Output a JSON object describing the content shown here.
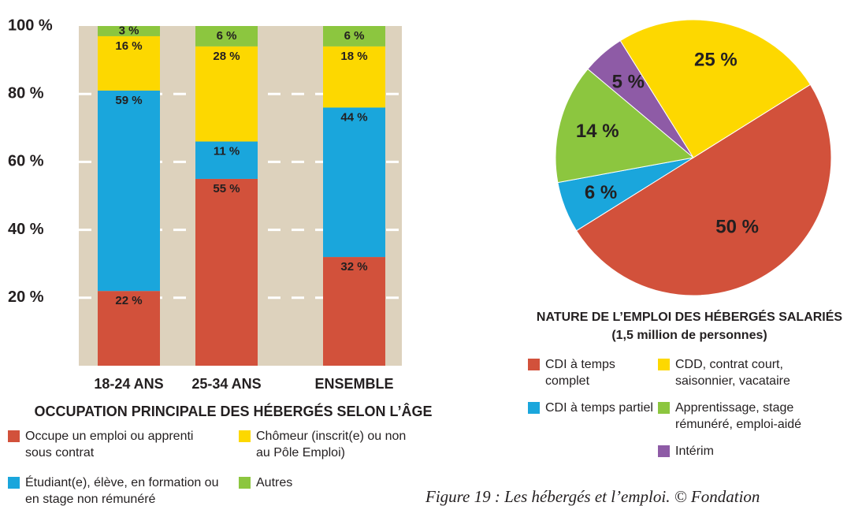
{
  "chart_data": [
    {
      "type": "stacked_bar",
      "title": "OCCUPATION PRINCIPALE DES HÉBERGÉS SELON L’ÂGE",
      "categories": [
        "18-24 ANS",
        "25-34 ANS",
        "ENSEMBLE"
      ],
      "series": [
        {
          "name": "Occupe un emploi ou apprenti sous contrat",
          "color": "#d2513b",
          "values": [
            22,
            55,
            32
          ],
          "value_labels": [
            "22 %",
            "55 %",
            "32 %"
          ]
        },
        {
          "name": "Étudiant(e), élève, en formation ou en stage non rémunéré",
          "color": "#1aa6dc",
          "values": [
            59,
            11,
            44
          ],
          "value_labels": [
            "59 %",
            "11 %",
            "44 %"
          ]
        },
        {
          "name": "Chômeur (inscrit(e) ou non au Pôle Emploi)",
          "color": "#fdd800",
          "values": [
            16,
            28,
            18
          ],
          "value_labels": [
            "16 %",
            "28 %",
            "18 %"
          ]
        },
        {
          "name": "Autres",
          "color": "#8cc63f",
          "values": [
            3,
            6,
            6
          ],
          "value_labels": [
            "3 %",
            "6 %",
            "6 %"
          ]
        }
      ],
      "ylim": [
        0,
        100
      ],
      "yticks": [
        {
          "value": 20,
          "label": "20 %"
        },
        {
          "value": 40,
          "label": "40 %"
        },
        {
          "value": 60,
          "label": "60 %"
        },
        {
          "value": 80,
          "label": "80 %"
        },
        {
          "value": 100,
          "label": "100 %"
        }
      ],
      "grid": true
    },
    {
      "type": "pie",
      "title": "NATURE DE L’EMPLOI DES HÉBERGÉS SALARIÉS",
      "subtitle": "(1,5 million de personnes)",
      "categories": [
        "CDI à temps complet",
        "CDI à temps partiel",
        "Apprentissage, stage rémunéré, emploi-aidé",
        "Intérim",
        "CDD, contrat court, saisonnier, vacataire"
      ],
      "values": [
        50,
        6,
        14,
        5,
        25
      ],
      "value_labels": [
        "50 %",
        "6 %",
        "14 %",
        "5 %",
        "25 %"
      ],
      "colors": [
        "#d2513b",
        "#1aa6dc",
        "#8cc63f",
        "#8e5ba6",
        "#fdd800"
      ]
    }
  ],
  "caption": "Figure 19 : Les hébergés et l’emploi. © Fondation"
}
